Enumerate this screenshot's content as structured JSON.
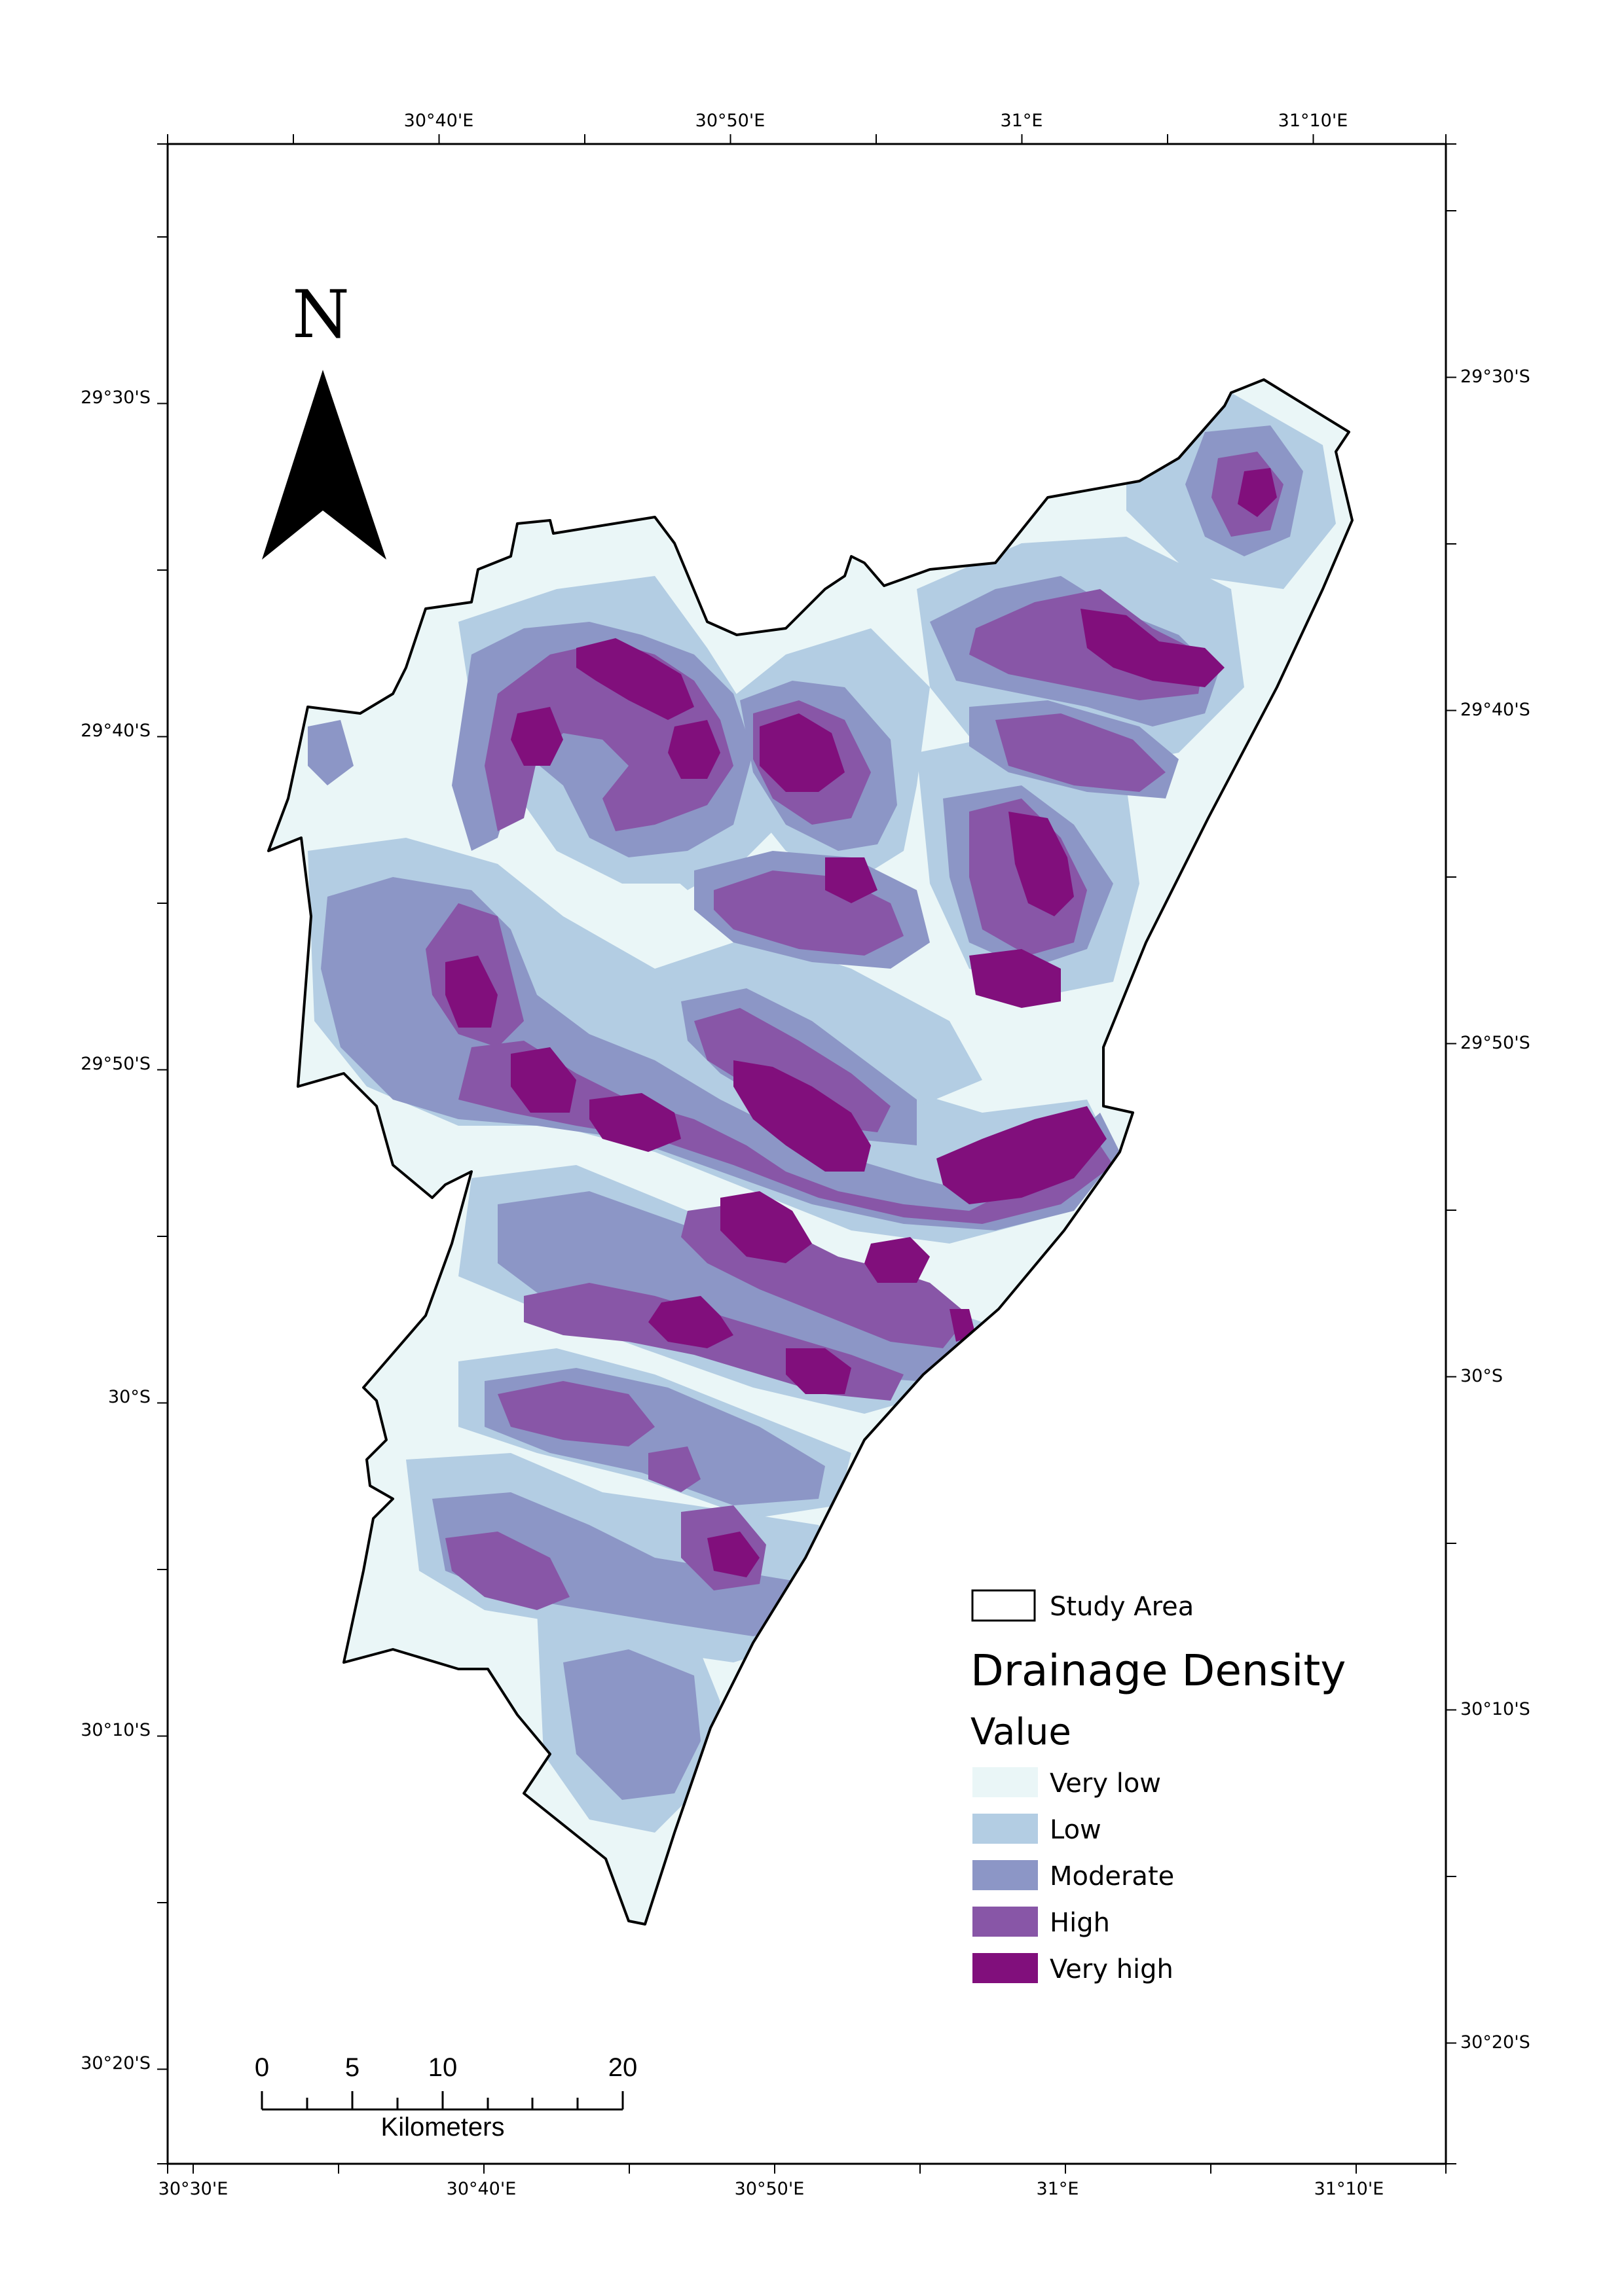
{
  "map": {
    "top_lon_labels": [
      "30°40'E",
      "30°50'E",
      "31°E",
      "31°10'E"
    ],
    "bottom_lon_labels": [
      "30°30'E",
      "30°40'E",
      "30°50'E",
      "31°E",
      "31°10'E"
    ],
    "left_lat_labels": [
      "29°30'S",
      "29°40'S",
      "29°50'S",
      "30°S",
      "30°10'S",
      "30°20'S"
    ],
    "right_lat_labels": [
      "29°30'S",
      "29°40'S",
      "29°50'S",
      "30°S",
      "30°10'S",
      "30°20'S"
    ]
  },
  "north_arrow": {
    "letter": "N",
    "icon": "north-arrow-icon"
  },
  "legend": {
    "boundary_label": "Study Area",
    "title": "Drainage Density",
    "subtitle": "Value",
    "classes": [
      {
        "label": "Very low",
        "color": "#eaf6f7"
      },
      {
        "label": "Low",
        "color": "#b3cde3"
      },
      {
        "label": "Moderate",
        "color": "#8c96c6"
      },
      {
        "label": "High",
        "color": "#8856a7"
      },
      {
        "label": "Very high",
        "color": "#810f7c"
      }
    ]
  },
  "scale_bar": {
    "ticks": [
      "0",
      "5",
      "10",
      "20"
    ],
    "unit": "Kilometers"
  }
}
